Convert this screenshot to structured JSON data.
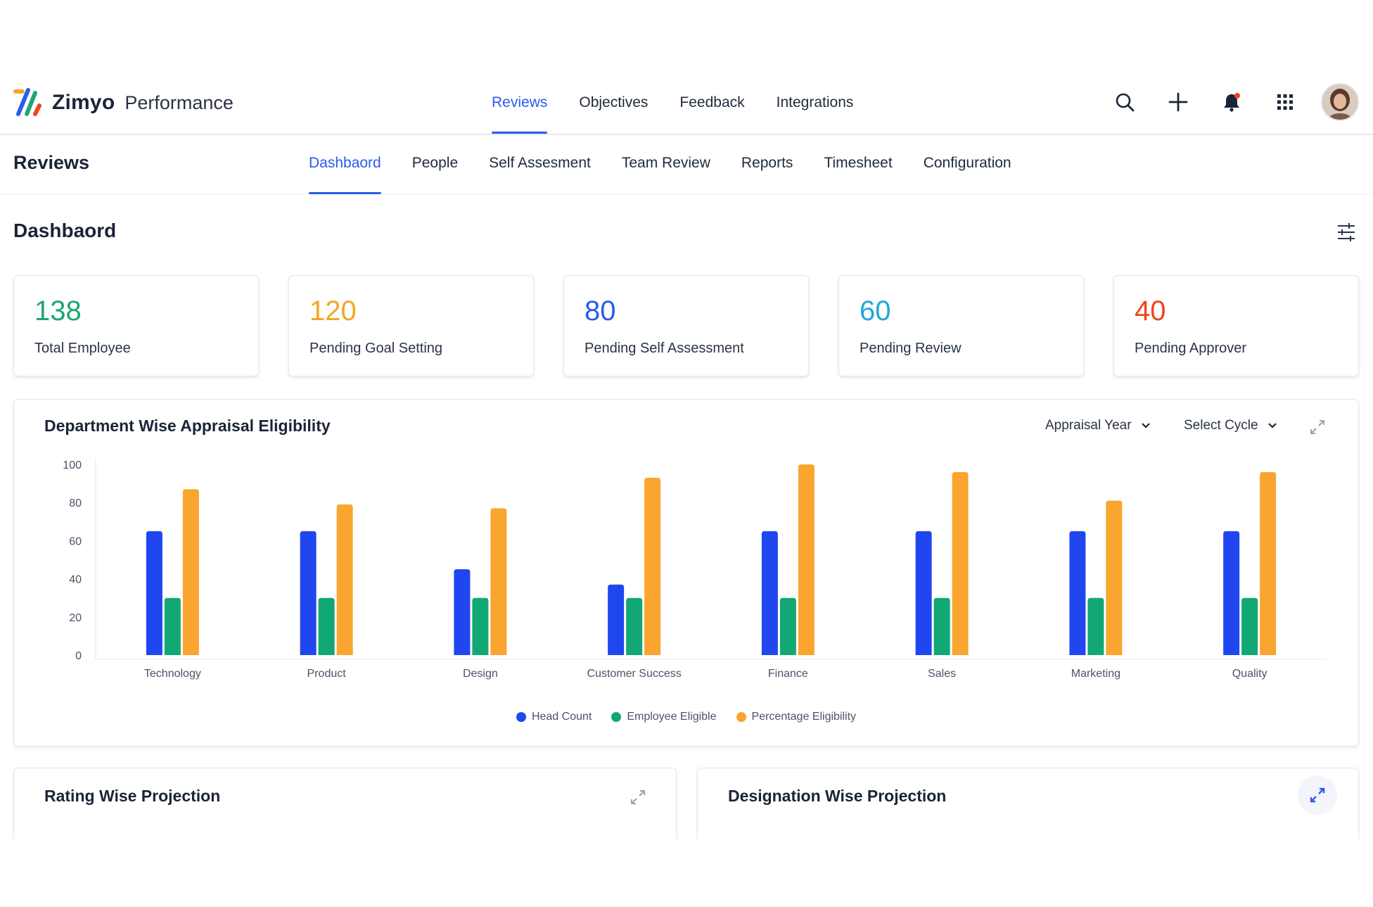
{
  "header": {
    "brand": "Zimyo",
    "product": "Performance",
    "nav": [
      {
        "label": "Reviews",
        "active": true
      },
      {
        "label": "Objectives",
        "active": false
      },
      {
        "label": "Feedback",
        "active": false
      },
      {
        "label": "Integrations",
        "active": false
      }
    ],
    "actions": [
      "search-icon",
      "plus-icon",
      "bell-icon",
      "apps-grid-icon"
    ]
  },
  "subheader": {
    "title": "Reviews",
    "tabs": [
      {
        "label": "Dashbaord",
        "active": true
      },
      {
        "label": "People",
        "active": false
      },
      {
        "label": "Self Assesment",
        "active": false
      },
      {
        "label": "Team Review",
        "active": false
      },
      {
        "label": "Reports",
        "active": false
      },
      {
        "label": "Timesheet",
        "active": false
      },
      {
        "label": "Configuration",
        "active": false
      }
    ]
  },
  "page": {
    "title": "Dashbaord"
  },
  "kpis": [
    {
      "value": "138",
      "label": "Total Employee",
      "color": "#1ea672"
    },
    {
      "value": "120",
      "label": "Pending Goal Setting",
      "color": "#f5a623"
    },
    {
      "value": "80",
      "label": "Pending Self Assessment",
      "color": "#2a5bf0"
    },
    {
      "value": "60",
      "label": "Pending Review",
      "color": "#1fa7d9"
    },
    {
      "value": "40",
      "label": "Pending Approver",
      "color": "#f0441d"
    }
  ],
  "chart_panel": {
    "title": "Department Wise Appraisal Eligibility",
    "dropdown_year": "Appraisal Year",
    "dropdown_cycle": "Select Cycle"
  },
  "chart_data": {
    "type": "bar",
    "title": "Department Wise Appraisal Eligibility",
    "categories": [
      "Technology",
      "Product",
      "Design",
      "Customer Success",
      "Finance",
      "Sales",
      "Marketing",
      "Quality"
    ],
    "series": [
      {
        "name": "Head Count",
        "color": "#2046f0",
        "values": [
          65,
          65,
          45,
          37,
          65,
          65,
          65,
          65
        ]
      },
      {
        "name": "Employee Eligible",
        "color": "#12a873",
        "values": [
          30,
          30,
          30,
          30,
          30,
          30,
          30,
          30
        ]
      },
      {
        "name": "Percentage Eligibility",
        "color": "#f9a530",
        "values": [
          87,
          79,
          77,
          93,
          100,
          96,
          81,
          96
        ]
      }
    ],
    "ylim": [
      0,
      100
    ],
    "yticks": [
      "100",
      "80",
      "60",
      "40",
      "20",
      "0"
    ],
    "grid": false,
    "legend": "bottom-center"
  },
  "bottom_panels": [
    {
      "title": "Rating Wise Projection"
    },
    {
      "title": "Designation Wise Projection"
    }
  ]
}
